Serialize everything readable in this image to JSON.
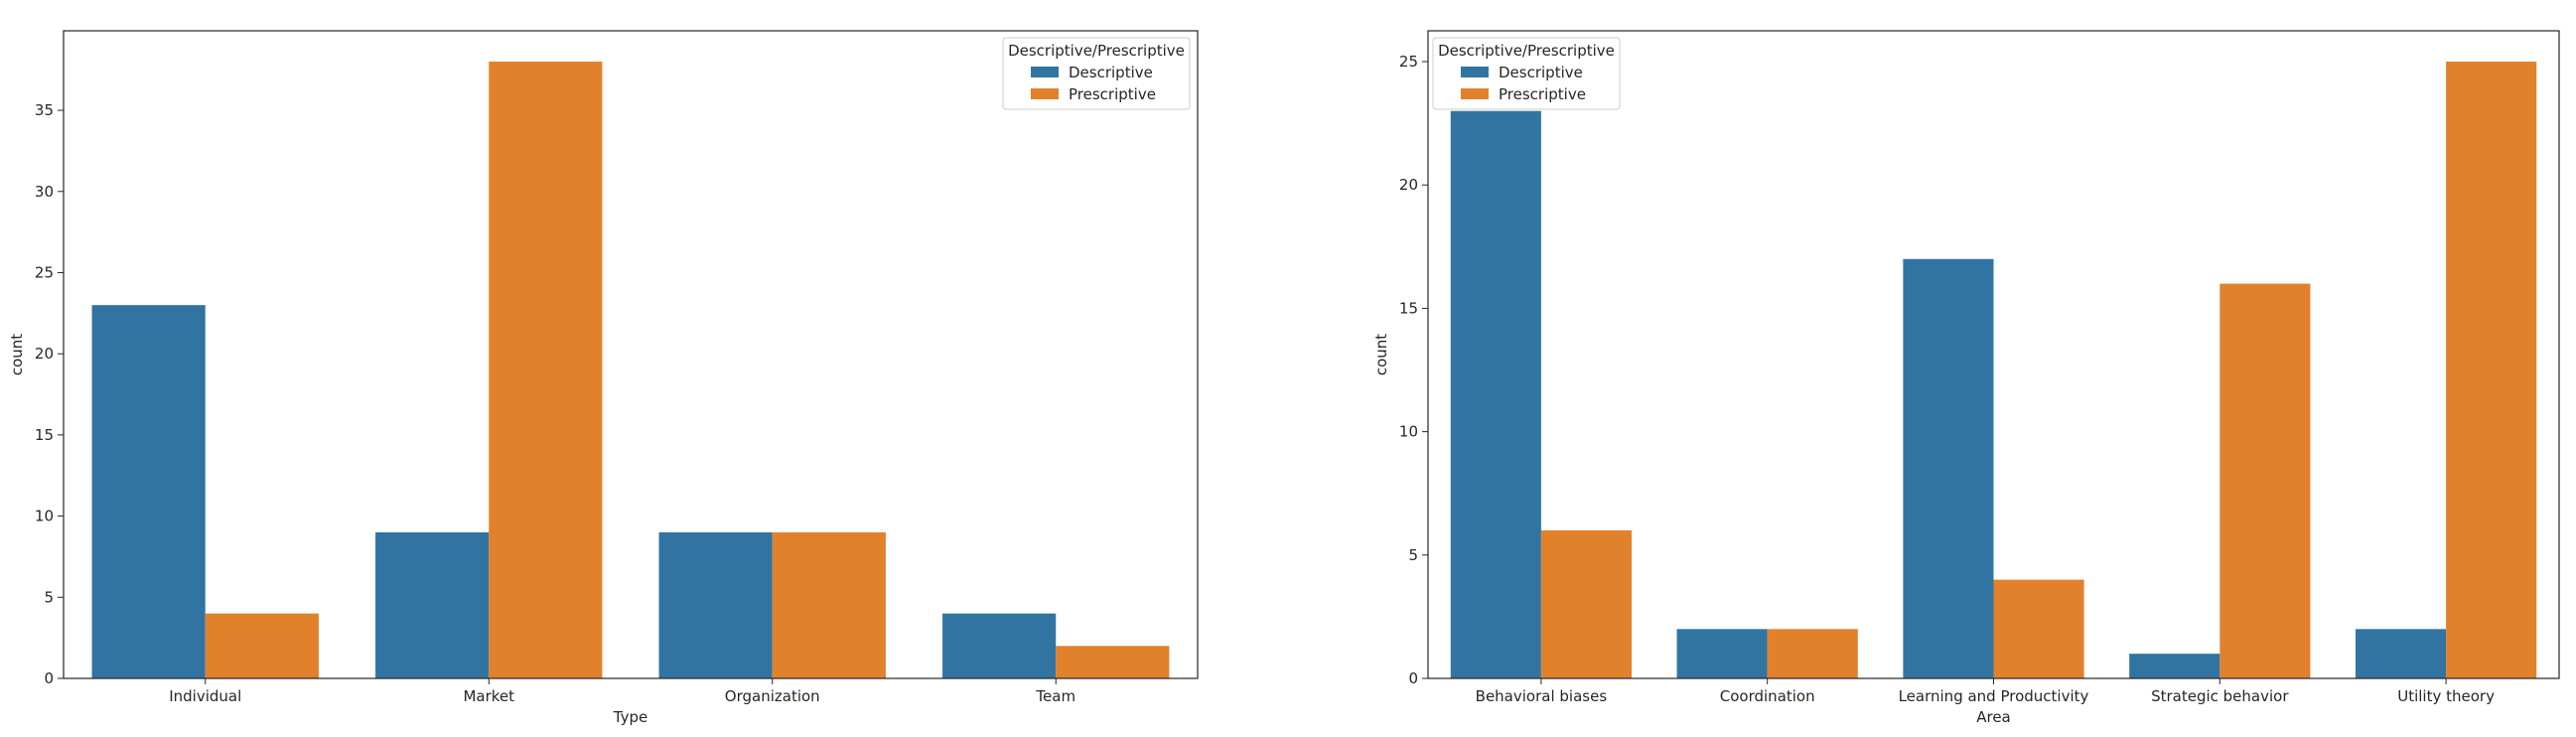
{
  "chart_data": [
    {
      "type": "bar",
      "xlabel": "Type",
      "ylabel": "count",
      "categories": [
        "Individual",
        "Market",
        "Organization",
        "Team"
      ],
      "ylim": [
        0,
        39.9
      ],
      "yticks": [
        0,
        5,
        10,
        15,
        20,
        25,
        30,
        35
      ],
      "legend": {
        "title": "Descriptive/Prescriptive",
        "placement": "upper right"
      },
      "series": [
        {
          "name": "Descriptive",
          "color": "#3274a1",
          "values": [
            23,
            9,
            9,
            4
          ]
        },
        {
          "name": "Prescriptive",
          "color": "#e1812c",
          "values": [
            4,
            38,
            9,
            2
          ]
        }
      ]
    },
    {
      "type": "bar",
      "xlabel": "Area",
      "ylabel": "count",
      "categories": [
        "Behavioral biases",
        "Coordination",
        "Learning and Productivity",
        "Strategic behavior",
        "Utility theory"
      ],
      "ylim": [
        0,
        26.25
      ],
      "yticks": [
        0,
        5,
        10,
        15,
        20,
        25
      ],
      "legend": {
        "title": "Descriptive/Prescriptive",
        "placement": "upper left"
      },
      "series": [
        {
          "name": "Descriptive",
          "color": "#3274a1",
          "values": [
            23,
            2,
            17,
            1,
            2
          ]
        },
        {
          "name": "Prescriptive",
          "color": "#e1812c",
          "values": [
            6,
            2,
            4,
            16,
            25
          ]
        }
      ]
    }
  ]
}
